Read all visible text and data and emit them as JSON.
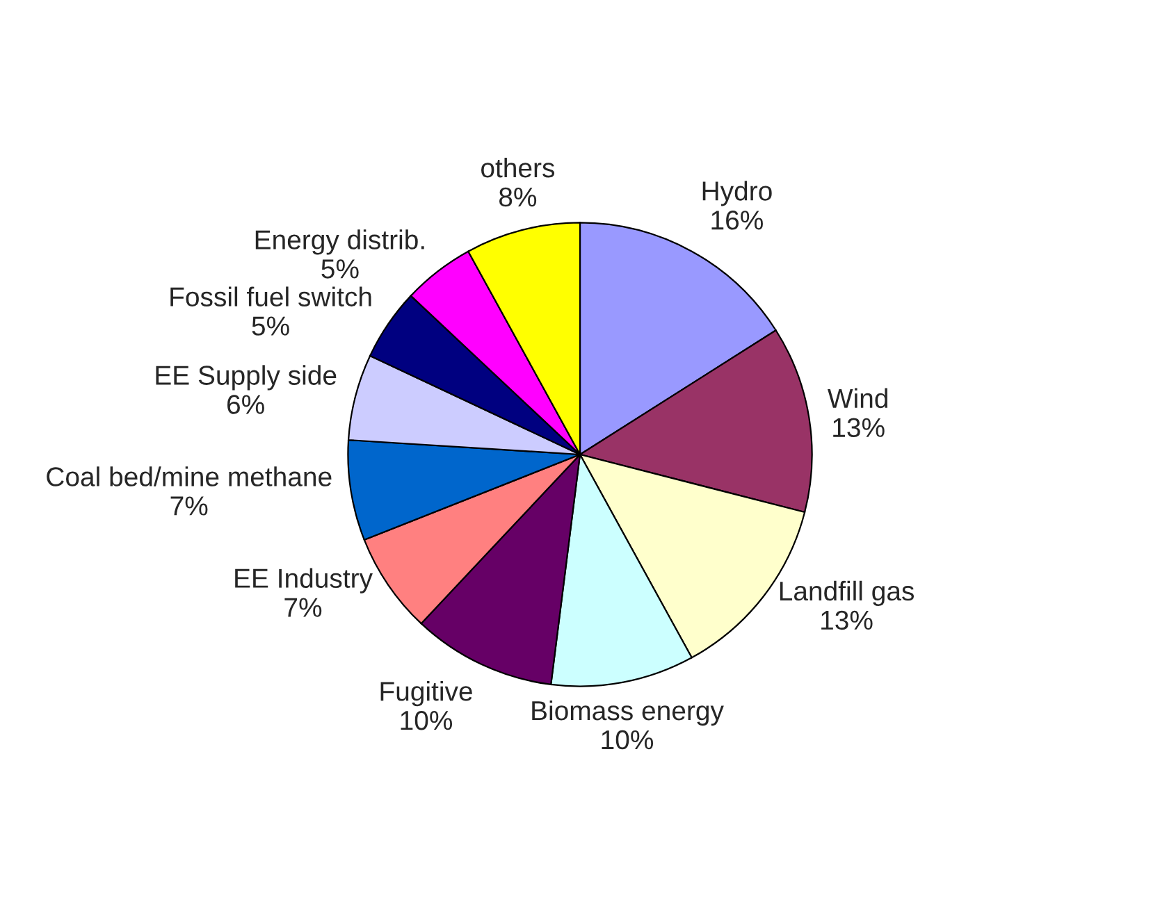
{
  "chart_data": {
    "type": "pie",
    "categories": [
      "Hydro",
      "Wind",
      "Landfill gas",
      "Biomass energy",
      "Fugitive",
      "EE Industry",
      "Coal bed/mine methane",
      "EE Supply side",
      "Fossil fuel switch",
      "Energy distrib.",
      "others"
    ],
    "values": [
      16,
      13,
      13,
      10,
      10,
      7,
      7,
      6,
      5,
      5,
      8
    ],
    "value_labels": [
      "16%",
      "13%",
      "13%",
      "10%",
      "10%",
      "7%",
      "7%",
      "6%",
      "5%",
      "5%",
      "8%"
    ],
    "colors": [
      "#9999ff",
      "#993366",
      "#ffffcc",
      "#ccffff",
      "#660066",
      "#ff8080",
      "#0066cc",
      "#ccccff",
      "#000080",
      "#ff00ff",
      "#ffff00"
    ]
  }
}
